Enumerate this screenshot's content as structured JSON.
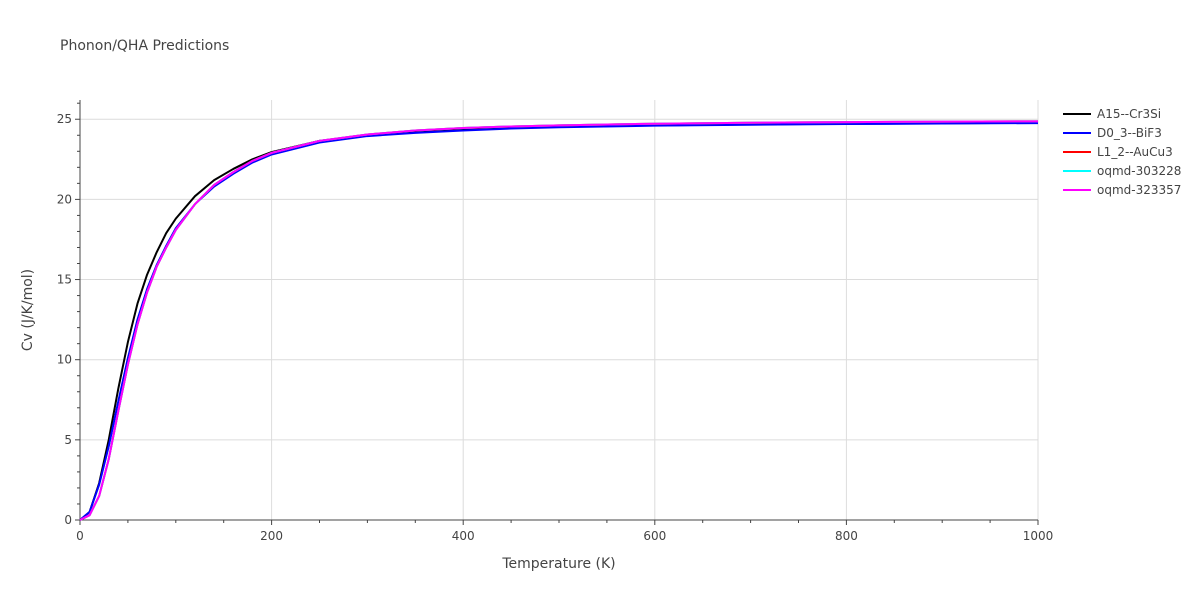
{
  "chart_data": {
    "type": "line",
    "title": "Phonon/QHA Predictions",
    "xlabel": "Temperature (K)",
    "ylabel": "Cv (J/K/mol)",
    "xlim": [
      0,
      1000
    ],
    "ylim": [
      0,
      26.2
    ],
    "xticks": [
      0,
      200,
      400,
      600,
      800,
      1000
    ],
    "yticks": [
      0,
      5,
      10,
      15,
      20,
      25
    ],
    "grid": true,
    "legend_position": "top-right",
    "series": [
      {
        "name": "A15--Cr3Si",
        "color": "#000000",
        "x": [
          0,
          10,
          20,
          30,
          40,
          50,
          60,
          70,
          80,
          90,
          100,
          120,
          140,
          160,
          180,
          200,
          250,
          300,
          350,
          400,
          450,
          500,
          600,
          700,
          800,
          900,
          1000
        ],
        "y": [
          0,
          0.5,
          2.3,
          5.0,
          8.2,
          11.1,
          13.5,
          15.3,
          16.7,
          17.9,
          18.8,
          20.2,
          21.2,
          21.9,
          22.5,
          22.95,
          23.65,
          24.0,
          24.2,
          24.35,
          24.45,
          24.53,
          24.62,
          24.68,
          24.72,
          24.75,
          24.78
        ]
      },
      {
        "name": "D0_3--BiF3",
        "color": "#0000ff",
        "x": [
          0,
          10,
          20,
          30,
          40,
          50,
          60,
          70,
          80,
          90,
          100,
          120,
          140,
          160,
          180,
          200,
          250,
          300,
          350,
          400,
          450,
          500,
          600,
          700,
          800,
          900,
          1000
        ],
        "y": [
          0,
          0.5,
          2.2,
          4.6,
          7.4,
          10.1,
          12.5,
          14.4,
          15.9,
          17.1,
          18.2,
          19.7,
          20.8,
          21.6,
          22.3,
          22.8,
          23.55,
          23.95,
          24.15,
          24.3,
          24.42,
          24.5,
          24.6,
          24.66,
          24.7,
          24.73,
          24.76
        ]
      },
      {
        "name": "L1_2--AuCu3",
        "color": "#ff0000",
        "x": [
          0,
          10,
          20,
          30,
          40,
          50,
          60,
          70,
          80,
          90,
          100,
          120,
          140,
          160,
          180,
          200,
          250,
          300,
          350,
          400,
          450,
          500,
          600,
          700,
          800,
          900,
          1000
        ],
        "y": [
          0,
          0.3,
          1.5,
          3.8,
          6.8,
          9.7,
          12.2,
          14.2,
          15.8,
          17.0,
          18.1,
          19.7,
          20.9,
          21.7,
          22.4,
          22.9,
          23.65,
          24.05,
          24.3,
          24.45,
          24.55,
          24.62,
          24.72,
          24.78,
          24.82,
          24.85,
          24.87
        ]
      },
      {
        "name": "oqmd-303228",
        "color": "#00ffff",
        "x": [
          0,
          10,
          20,
          30,
          40,
          50,
          60,
          70,
          80,
          90,
          100,
          120,
          140,
          160,
          180,
          200,
          250,
          300,
          350,
          400,
          450,
          500,
          600,
          700,
          800,
          900,
          1000
        ],
        "y": [
          0,
          0.3,
          1.5,
          3.8,
          6.8,
          9.7,
          12.2,
          14.2,
          15.8,
          17.0,
          18.1,
          19.7,
          20.9,
          21.7,
          22.4,
          22.9,
          23.65,
          24.05,
          24.3,
          24.45,
          24.55,
          24.62,
          24.72,
          24.78,
          24.82,
          24.85,
          24.87
        ]
      },
      {
        "name": "oqmd-323357",
        "color": "#ff00ff",
        "x": [
          0,
          10,
          20,
          30,
          40,
          50,
          60,
          70,
          80,
          90,
          100,
          120,
          140,
          160,
          180,
          200,
          250,
          300,
          350,
          400,
          450,
          500,
          600,
          700,
          800,
          900,
          1000
        ],
        "y": [
          0,
          0.3,
          1.5,
          3.8,
          6.8,
          9.7,
          12.2,
          14.2,
          15.8,
          17.0,
          18.1,
          19.7,
          20.9,
          21.7,
          22.4,
          22.9,
          23.65,
          24.05,
          24.3,
          24.45,
          24.55,
          24.62,
          24.72,
          24.78,
          24.82,
          24.85,
          24.87
        ]
      }
    ]
  }
}
